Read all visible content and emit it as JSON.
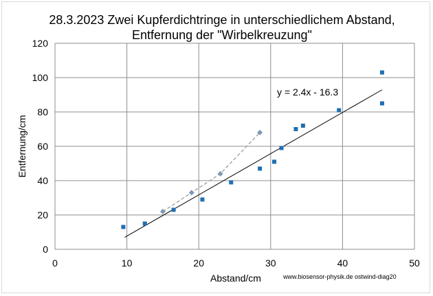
{
  "chart_data": {
    "type": "scatter",
    "title_lines": [
      "28.3.2023  Zwei Kupferdichtringe in unterschiedlichem Abstand,",
      "Entfernung der \"Wirbelkreuzung\""
    ],
    "xlabel": "Abstand/cm",
    "ylabel": "Entfernung/cm",
    "xlim": [
      0,
      50
    ],
    "ylim": [
      0,
      120
    ],
    "xticks": [
      0,
      10,
      20,
      30,
      40,
      50
    ],
    "yticks": [
      0,
      20,
      40,
      60,
      80,
      100,
      120
    ],
    "grid": true,
    "series": [
      {
        "marker": "square",
        "color": "#1f6fb2",
        "points": [
          [
            9.5,
            13
          ],
          [
            12.5,
            15
          ],
          [
            16.5,
            23
          ],
          [
            20.5,
            29
          ],
          [
            24.5,
            39
          ],
          [
            28.5,
            47
          ],
          [
            30.5,
            51
          ],
          [
            31.5,
            59
          ],
          [
            33.5,
            70
          ],
          [
            34.5,
            72
          ],
          [
            39.5,
            81
          ],
          [
            45.5,
            85
          ],
          [
            45.5,
            103
          ]
        ]
      },
      {
        "marker": "diamond",
        "color": "#7f97b8",
        "line_style": "dashed",
        "line_color": "#a6a6a6",
        "points": [
          [
            15,
            22
          ],
          [
            19,
            33
          ],
          [
            23,
            44
          ],
          [
            28.5,
            68
          ]
        ]
      }
    ],
    "trendline": {
      "equation": "y = 2.4x - 16.3",
      "slope": 2.4,
      "intercept": -16.3,
      "x_range": [
        9.7,
        45.5
      ],
      "color": "#000000"
    },
    "credit": "www.biosensor-physik.de  ostwind-diag20"
  }
}
